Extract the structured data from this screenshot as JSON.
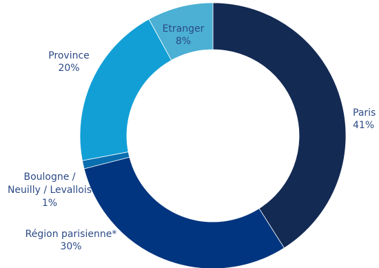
{
  "chart_data": {
    "type": "pie",
    "donut": true,
    "slices": [
      {
        "label": "Paris",
        "value_label": "41%",
        "value": 41,
        "color": "#132a53"
      },
      {
        "label": "Région parisienne*",
        "value_label": "30%",
        "value": 30,
        "color": "#02357f"
      },
      {
        "label": "Boulogne / Neuilly / Levallois",
        "value_label": "1%",
        "value": 1,
        "color": "#0a6fb0"
      },
      {
        "label": "Province",
        "value_label": "20%",
        "value": 20,
        "color": "#129fd6"
      },
      {
        "label": "Etranger",
        "value_label": "8%",
        "value": 8,
        "color": "#4bb0d3"
      }
    ]
  }
}
